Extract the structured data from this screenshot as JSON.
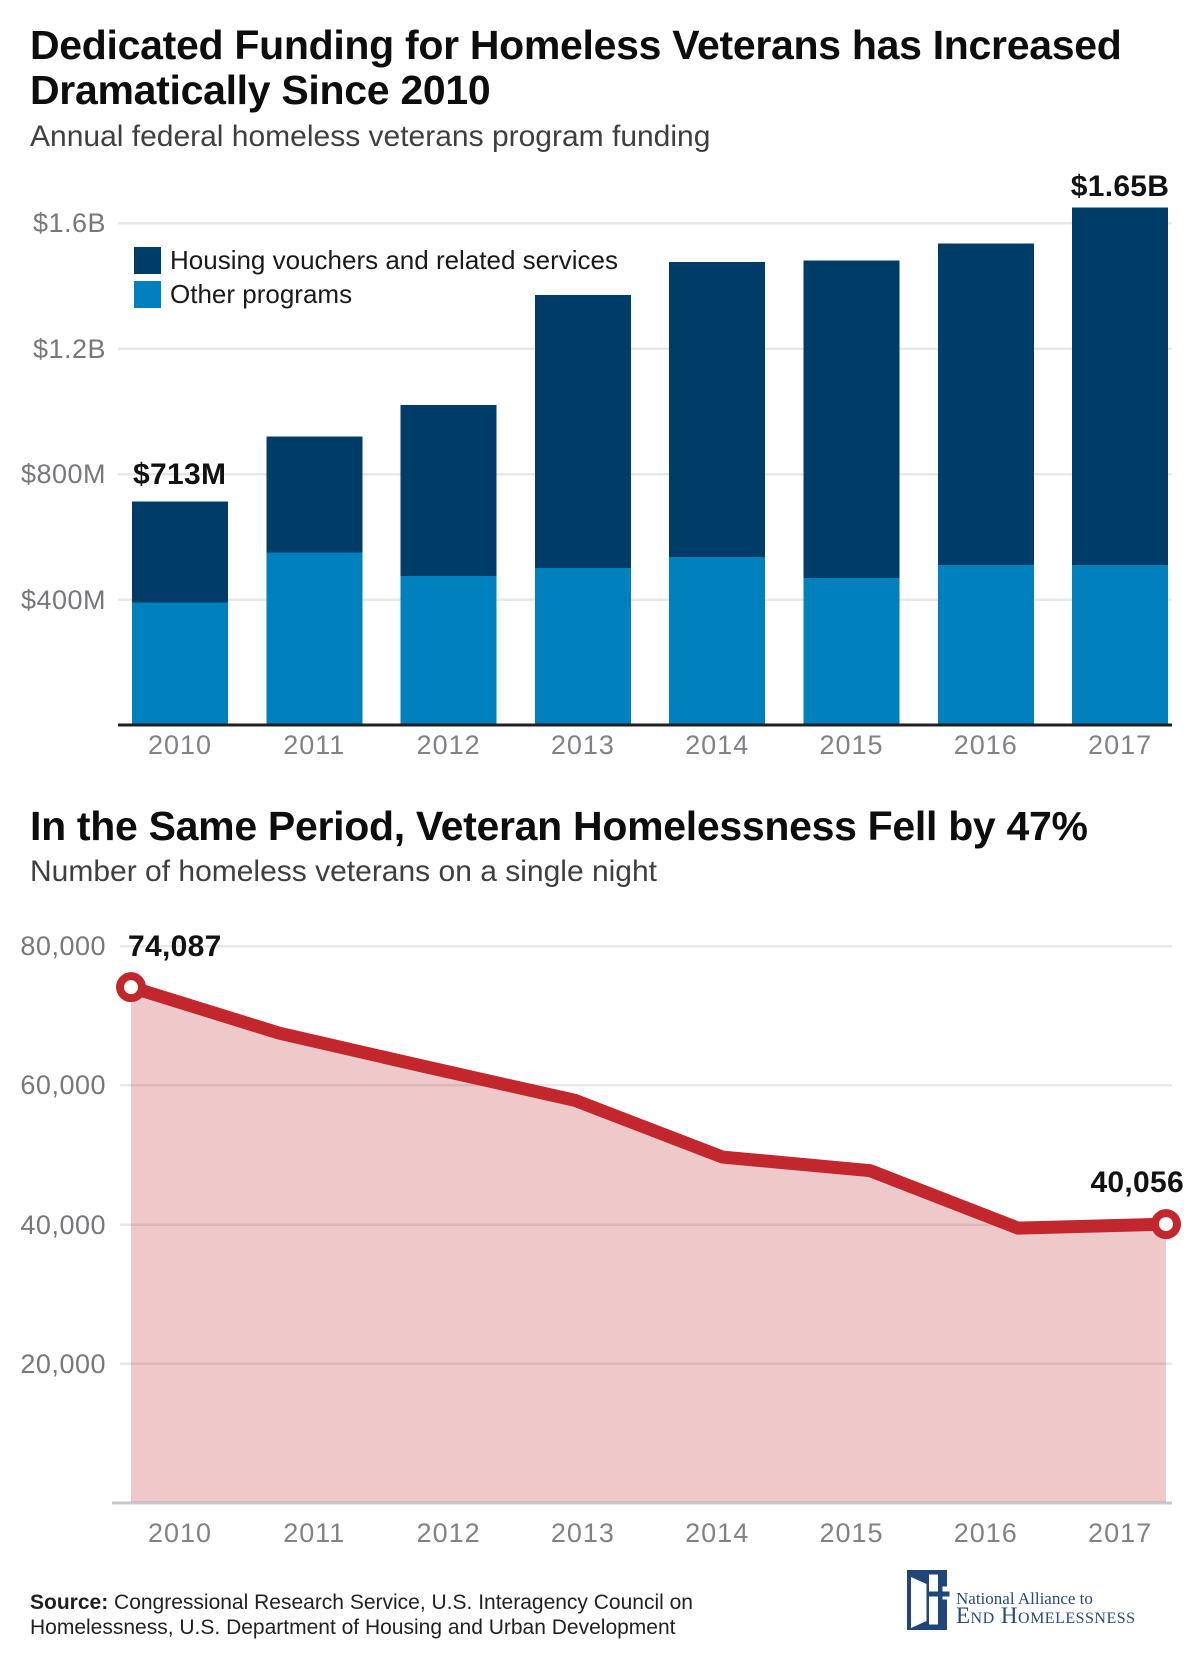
{
  "colors": {
    "dark_blue": "#003c68",
    "light_blue": "#0080bc",
    "red": "#c1272d",
    "pink_fill": "rgba(193,39,45,0.25)",
    "gridline": "#e6e7e8",
    "axis_dark": "#231f20",
    "axis_light": "#c6c8ca",
    "tick_gray": "#77787b",
    "logo_navy": "#1f4678"
  },
  "header": {
    "title_line1": "Dedicated Funding for Homeless Veterans has Increased",
    "title_line2": "Dramatically Since 2010",
    "subtitle": "Annual federal homeless veterans program funding"
  },
  "section2": {
    "title": "In the Same Period, Veteran Homelessness Fell by 47%",
    "subtitle": "Number of homeless veterans on a single night"
  },
  "chart_data": [
    {
      "type": "bar",
      "stacked": true,
      "title": "Dedicated Funding for Homeless Veterans has Increased Dramatically Since 2010",
      "subtitle": "Annual federal homeless veterans program funding",
      "categories": [
        "2010",
        "2011",
        "2012",
        "2013",
        "2014",
        "2015",
        "2016",
        "2017"
      ],
      "series": [
        {
          "name": "Other programs",
          "color_key": "light_blue",
          "values_million_usd": [
            390,
            550,
            475,
            500,
            535,
            468,
            510,
            510
          ]
        },
        {
          "name": "Housing vouchers and related services",
          "color_key": "dark_blue",
          "values_million_usd": [
            323,
            370,
            545,
            870,
            940,
            1012,
            1025,
            1140
          ]
        }
      ],
      "totals_million_usd": [
        713,
        920,
        1020,
        1370,
        1475,
        1480,
        1535,
        1650
      ],
      "y_axis": {
        "tick_values_million_usd": [
          400,
          800,
          1200,
          1600
        ],
        "tick_labels": [
          "$400M",
          "$800M",
          "$1.2B",
          "$1.6B"
        ],
        "range_million_usd": [
          0,
          1760
        ]
      },
      "annotations": [
        {
          "category": "2010",
          "text": "$713M"
        },
        {
          "category": "2017",
          "text": "$1.65B"
        }
      ],
      "legend_position": "top-left-inside",
      "grid": true
    },
    {
      "type": "area",
      "title": "In the Same Period, Veteran Homelessness Fell by 47%",
      "subtitle": "Number of homeless veterans on a single night",
      "x": [
        "2010",
        "2011",
        "2012",
        "2013",
        "2014",
        "2015",
        "2016",
        "2017"
      ],
      "values": [
        74087,
        67495,
        62619,
        57849,
        49689,
        47725,
        39471,
        40056
      ],
      "y_axis": {
        "tick_values": [
          20000,
          40000,
          60000,
          80000
        ],
        "tick_labels": [
          "20,000",
          "40,000",
          "60,000",
          "80,000"
        ],
        "range": [
          0,
          80200
        ]
      },
      "annotations": [
        {
          "x": "2010",
          "text": "74,087"
        },
        {
          "x": "2017",
          "text": "40,056"
        }
      ],
      "markers_at": [
        "2010",
        "2017"
      ],
      "grid": true,
      "legend_position": "none"
    }
  ],
  "source": {
    "label": "Source:",
    "line1": "Congressional Research Service, U.S. Interagency Council on",
    "line2": "Homelessness, U.S. Department of Housing and Urban Development"
  },
  "logo": {
    "line1": "National Alliance to",
    "line2": "End Homelessness"
  }
}
